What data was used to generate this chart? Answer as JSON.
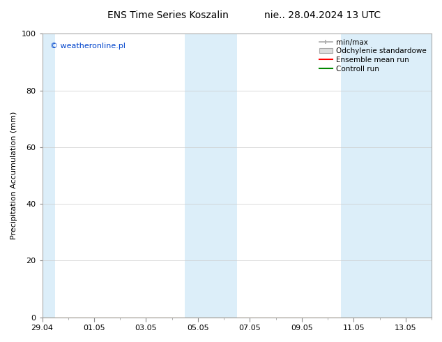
{
  "title": "ENS Time Series Koszalin",
  "title2": "nie.. 28.04.2024 13 UTC",
  "ylabel": "Precipitation Accumulation (mm)",
  "watermark": "© weatheronline.pl",
  "ylim": [
    0,
    100
  ],
  "yticks": [
    0,
    20,
    40,
    60,
    80,
    100
  ],
  "xlim": [
    0,
    15
  ],
  "xtick_labels": [
    "29.04",
    "01.05",
    "03.05",
    "05.05",
    "07.05",
    "09.05",
    "11.05",
    "13.05"
  ],
  "xtick_positions_days": [
    0,
    2,
    4,
    6,
    8,
    10,
    12,
    14
  ],
  "shade_bands": [
    {
      "start_day": -0.5,
      "end_day": 0.5
    },
    {
      "start_day": 5.5,
      "end_day": 7.5
    },
    {
      "start_day": 11.5,
      "end_day": 15.5
    }
  ],
  "band_color": "#dceef9",
  "background_color": "#ffffff",
  "line_value": 0,
  "title_fontsize": 10,
  "label_fontsize": 8,
  "tick_fontsize": 8,
  "legend_fontsize": 7.5
}
